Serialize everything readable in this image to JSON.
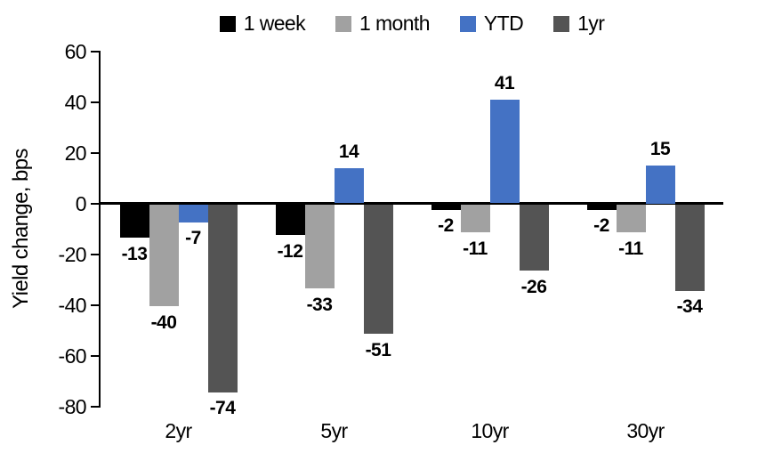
{
  "chart_data": {
    "type": "bar",
    "title": "",
    "ylabel": "Yield change, bps",
    "categories": [
      "2yr",
      "5yr",
      "10yr",
      "30yr"
    ],
    "series": [
      {
        "name": "1 week",
        "color": "#000000",
        "values": [
          -13,
          -12,
          -2,
          -2
        ]
      },
      {
        "name": "1 month",
        "color": "#a1a1a1",
        "values": [
          -40,
          -33,
          -11,
          -11
        ]
      },
      {
        "name": "YTD",
        "color": "#4472c4",
        "values": [
          -7,
          14,
          41,
          15
        ]
      },
      {
        "name": "1yr",
        "color": "#545454",
        "values": [
          -74,
          -51,
          -26,
          -34
        ]
      }
    ],
    "ylim": [
      -80,
      60
    ],
    "ytick_step": 20,
    "grid": false,
    "legend_position": "top",
    "axis_color": "#000000"
  }
}
